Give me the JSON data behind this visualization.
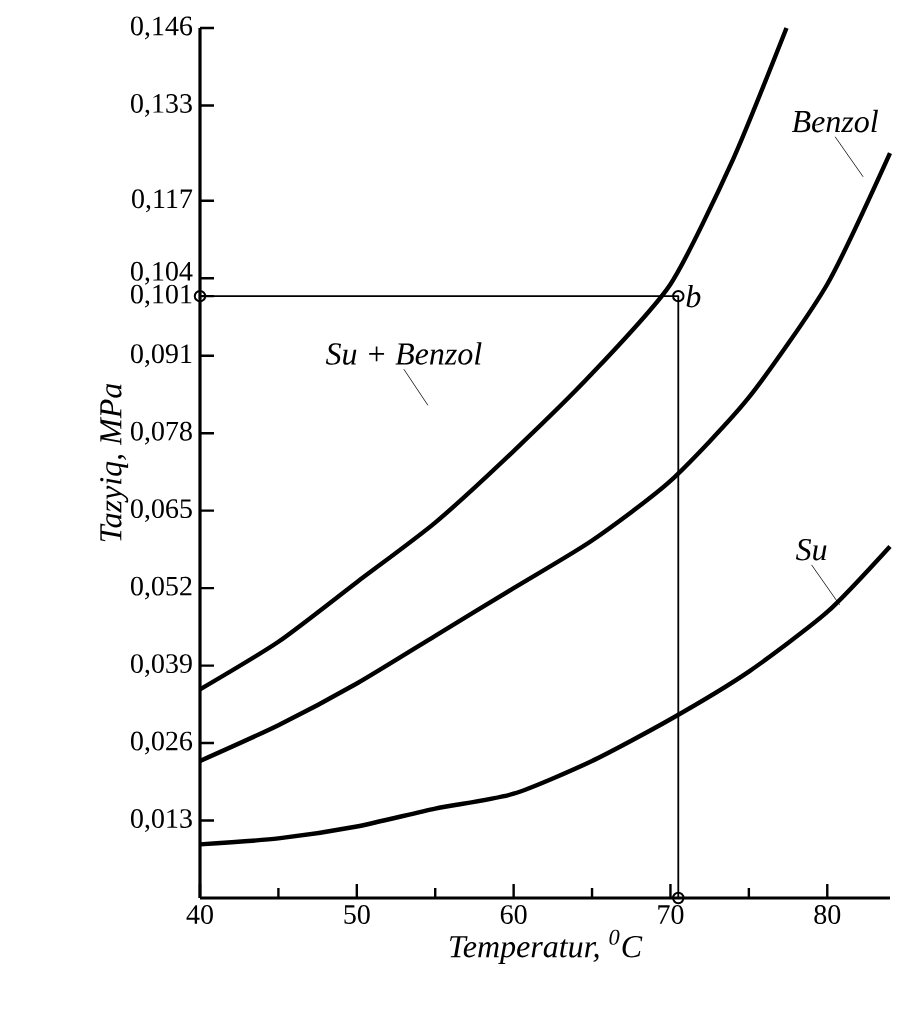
{
  "chart_data": {
    "type": "line",
    "xlabel": "Temperatur, $^{0}$C",
    "ylabel": "Tazyiq, MPa",
    "xlim": [
      40,
      84
    ],
    "xticks": [
      40,
      50,
      60,
      70,
      80
    ],
    "ylim": [
      0,
      0.146
    ],
    "yticks": [
      {
        "value": 0.013,
        "label": "0,013"
      },
      {
        "value": 0.026,
        "label": "0,026"
      },
      {
        "value": 0.039,
        "label": "0,039"
      },
      {
        "value": 0.052,
        "label": "0,052"
      },
      {
        "value": 0.065,
        "label": "0,065"
      },
      {
        "value": 0.078,
        "label": "0,078"
      },
      {
        "value": 0.091,
        "label": "0,091"
      },
      {
        "value": 0.101,
        "label": "0,101"
      },
      {
        "value": 0.104,
        "label": "0,104"
      },
      {
        "value": 0.117,
        "label": "0,117"
      },
      {
        "value": 0.133,
        "label": "0,133"
      },
      {
        "value": 0.146,
        "label": "0,146"
      }
    ],
    "grid": false,
    "legend": false,
    "marker": "none",
    "line_style": "solid",
    "series": [
      {
        "name": "Su + Benzol",
        "color": "#000000",
        "x": [
          40,
          45,
          50,
          55,
          60,
          65,
          70,
          74,
          77.4
        ],
        "values": [
          0.035,
          0.043,
          0.053,
          0.063,
          0.075,
          0.088,
          0.103,
          0.124,
          0.146
        ]
      },
      {
        "name": "Benzol",
        "color": "#000000",
        "x": [
          40,
          45,
          50,
          55,
          60,
          65,
          70,
          75,
          80,
          84
        ],
        "values": [
          0.023,
          0.029,
          0.036,
          0.044,
          0.052,
          0.06,
          0.07,
          0.084,
          0.103,
          0.125
        ]
      },
      {
        "name": "Su",
        "color": "#000000",
        "x": [
          40,
          45,
          50,
          55,
          60,
          65,
          70,
          75,
          80,
          84
        ],
        "values": [
          0.009,
          0.01,
          0.012,
          0.015,
          0.0175,
          0.023,
          0.03,
          0.038,
          0.048,
          0.059
        ]
      },
      {
        "color": "#000000",
        "marker": "circle",
        "x": [
          40,
          70.5,
          70.5
        ],
        "values": [
          0.101,
          0.101,
          0
        ]
      }
    ],
    "annotations": [
      {
        "text": "b",
        "x": 70.5,
        "y": 0.101
      }
    ]
  }
}
